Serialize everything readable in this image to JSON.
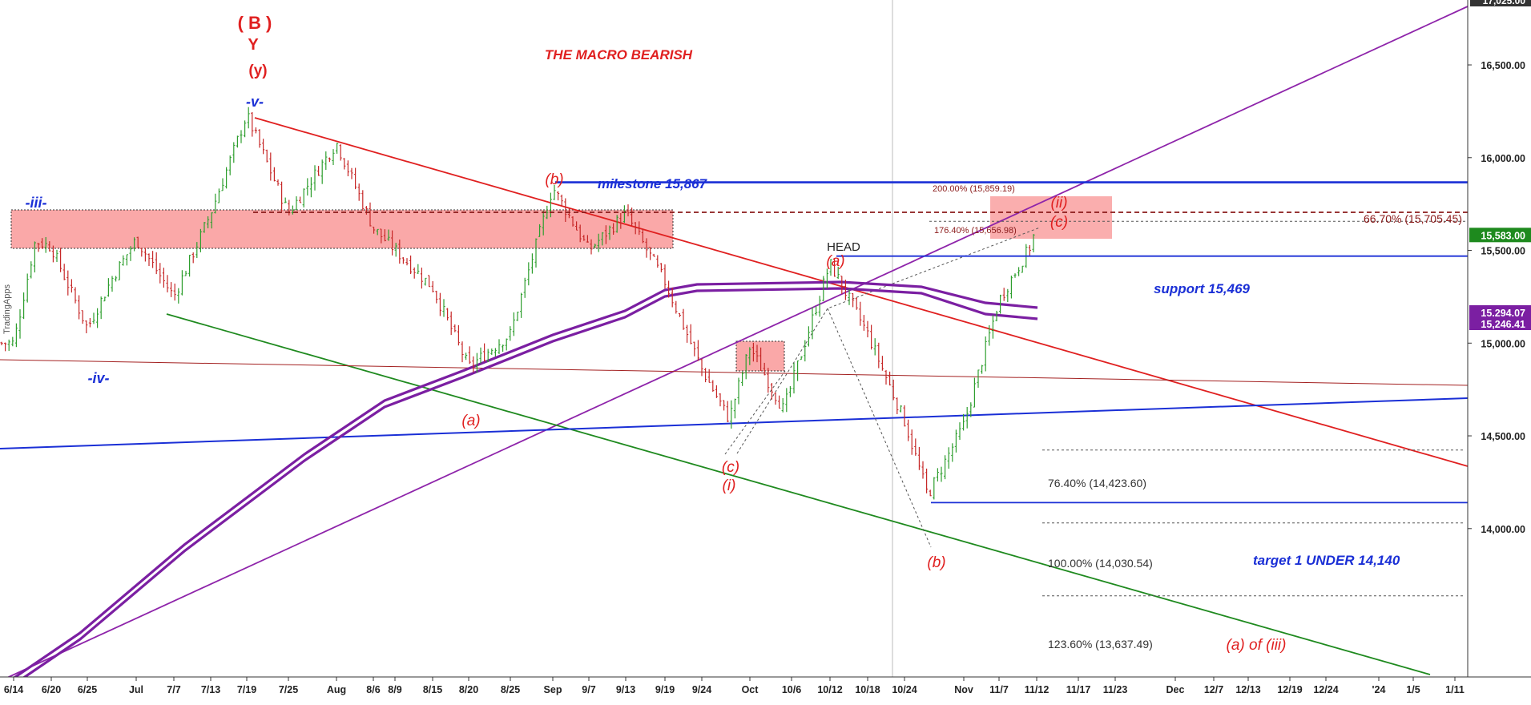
{
  "chart_data": {
    "type": "candlestick",
    "title": "THE MACRO BEARISH",
    "xlabel": "",
    "ylabel": "",
    "ylim": [
      13200,
      16850
    ],
    "y_ticks": [
      "14,000.00",
      "14,500.00",
      "15,000.00",
      "15,500.00",
      "16,000.00",
      "16,500.00"
    ],
    "y_tick_values": [
      14000,
      14500,
      15000,
      15500,
      16000,
      16500
    ],
    "top_value_label": "17,025.00",
    "x_ticks": [
      "6/14",
      "6/20",
      "6/25",
      "Jul",
      "7/7",
      "7/13",
      "7/19",
      "7/25",
      "Aug",
      "8/6",
      "8/9",
      "8/15",
      "8/20",
      "8/25",
      "Sep",
      "9/7",
      "9/13",
      "9/19",
      "9/24",
      "Oct",
      "10/6",
      "10/12",
      "10/18",
      "10/24",
      "Nov",
      "11/7",
      "11/12",
      "11/17",
      "11/23",
      "Dec",
      "12/7",
      "12/13",
      "12/19",
      "12/24",
      "'24",
      "1/5",
      "1/11"
    ],
    "price_series": {
      "name": "",
      "anchors": [
        {
          "x": "6/14",
          "close": 15000
        },
        {
          "x": "6/17",
          "close": 15550
        },
        {
          "x": "6/20",
          "close": 15520
        },
        {
          "x": "6/25",
          "close": 15080
        },
        {
          "x": "6/30",
          "close": 15350
        },
        {
          "x": "Jul",
          "close": 15560
        },
        {
          "x": "7/7",
          "close": 15250
        },
        {
          "x": "7/13",
          "close": 15700
        },
        {
          "x": "7/19",
          "close": 16230
        },
        {
          "x": "7/25",
          "close": 15700
        },
        {
          "x": "Aug",
          "close": 16080
        },
        {
          "x": "8/6",
          "close": 15620
        },
        {
          "x": "8/15",
          "close": 15300
        },
        {
          "x": "8/20",
          "close": 14870
        },
        {
          "x": "8/25",
          "close": 15050
        },
        {
          "x": "Sep",
          "close": 15840
        },
        {
          "x": "9/7",
          "close": 15500
        },
        {
          "x": "9/13",
          "close": 15700
        },
        {
          "x": "9/19",
          "close": 15330
        },
        {
          "x": "9/24",
          "close": 14860
        },
        {
          "x": "9/29",
          "close": 14590
        },
        {
          "x": "Oct",
          "close": 14980
        },
        {
          "x": "10/5",
          "close": 14640
        },
        {
          "x": "10/12",
          "close": 15430
        },
        {
          "x": "10/18",
          "close": 15050
        },
        {
          "x": "10/24",
          "close": 14580
        },
        {
          "x": "10/27",
          "close": 14180
        },
        {
          "x": "Nov",
          "close": 14560
        },
        {
          "x": "11/7",
          "close": 15230
        },
        {
          "x": "11/12",
          "close": 15583
        }
      ]
    },
    "moving_averages": [
      {
        "name": "",
        "color": "#7b1fa2",
        "last_value": 15294.07,
        "last_label": "15,294.07"
      },
      {
        "name": "",
        "color": "#7b1fa2",
        "last_value": 15246.41,
        "last_label": "15,246.41"
      }
    ],
    "last_price": {
      "value": 15583.0,
      "label": "15,583.00",
      "color": "#1e8a1e"
    },
    "horizontal_levels": [
      {
        "label": "milestone 15,867",
        "value": 15867,
        "color": "#1a2fd6"
      },
      {
        "label": "support 15,469",
        "value": 15469,
        "color": "#1a2fd6"
      },
      {
        "label": "target 1 UNDER 14,140",
        "value": 14140,
        "color": "#1a2fd6"
      }
    ],
    "fibonacci_levels": [
      {
        "label": "200.00% (15,859.19)",
        "value": 15859.19
      },
      {
        "label": "176.40% (15,656.98)",
        "value": 15656.98
      },
      {
        "label": "66.70% (15,705.45)",
        "value": 15705.45
      },
      {
        "label": "76.40% (14,423.60)",
        "value": 14423.6
      },
      {
        "label": "100.00% (14,030.54)",
        "value": 14030.54
      },
      {
        "label": "123.60% (13,637.49)",
        "value": 13637.49
      }
    ],
    "wave_labels": [
      {
        "text": "( B )",
        "color": "#e02020"
      },
      {
        "text": "Y",
        "color": "#e02020"
      },
      {
        "text": "(y)",
        "color": "#e02020"
      },
      {
        "text": "-v-",
        "color": "#1a2fd6"
      },
      {
        "text": "-iii-",
        "color": "#1a2fd6"
      },
      {
        "text": "-iv-",
        "color": "#1a2fd6"
      },
      {
        "text": "(a)",
        "color": "#e02020"
      },
      {
        "text": "(b)",
        "color": "#e02020"
      },
      {
        "text": "(c)",
        "color": "#e02020"
      },
      {
        "text": "(i)",
        "color": "#e02020"
      },
      {
        "text": "(a)",
        "color": "#e02020"
      },
      {
        "text": "(b)",
        "color": "#e02020"
      },
      {
        "text": "(ii)",
        "color": "#e02020"
      },
      {
        "text": "(c)",
        "color": "#e02020"
      },
      {
        "text": "(a) of (iii)",
        "color": "#e02020"
      }
    ],
    "annotations": [
      {
        "text": "HEAD",
        "color": "#222222"
      }
    ],
    "watermark": "TradingApps"
  }
}
